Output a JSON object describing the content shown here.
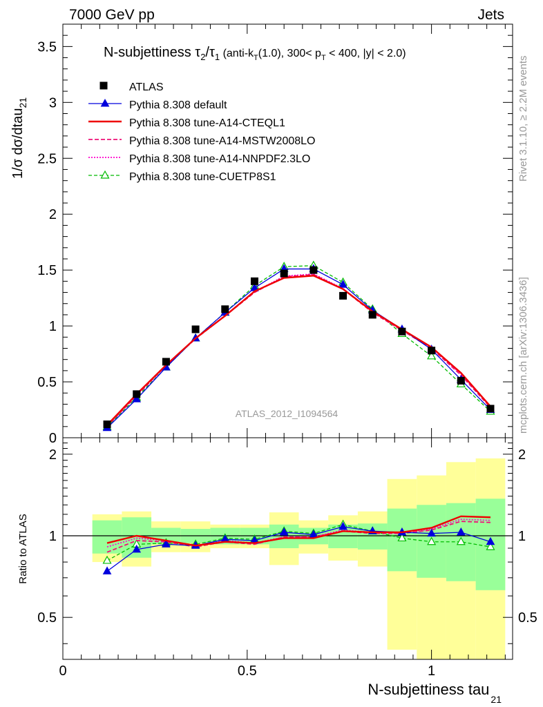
{
  "header": {
    "left": "7000 GeV pp",
    "right": "Jets"
  },
  "side_labels": {
    "rivet": "Rivet 3.1.10, ≥ 2.2M events",
    "mcplots": "mcplots.cern.ch [arXiv:1306.3436]"
  },
  "chart_data": {
    "type": "line",
    "title": "N-subjettiness τ₂/τ₁ (anti-k_T(1.0), 300< p_T < 400, |y| < 2.0)",
    "title_parts": {
      "main": "N-subjettiness τ",
      "sub2": "2",
      "slash": "/τ",
      "sub1": "1",
      "paren_a": " (anti-k",
      "sub_t": "T",
      "paren_b": "(1.0), 300< p",
      "sub_t2": "T",
      "paren_c": " < 400, |y| < 2.0)"
    },
    "analysis_tag": "ATLAS_2012_I1094564",
    "xlabel": "N-subjettiness tau",
    "xlabel_sub": "21",
    "ylabel": "1/σ dσ/dtau",
    "ylabel_sub": "21",
    "ratio_ylabel": "Ratio to ATLAS",
    "xlim": [
      0,
      1.22
    ],
    "ylim": [
      0,
      3.7
    ],
    "ratio_ylim": [
      0.35,
      2.3
    ],
    "main_yticks": [
      0,
      0.5,
      1,
      1.5,
      2,
      2.5,
      3,
      3.5
    ],
    "main_ytick_labels": [
      "0",
      "0.5",
      "1",
      "1.5",
      "2",
      "2.5",
      "3",
      "3.5"
    ],
    "ratio_yticks": [
      0.5,
      1,
      2
    ],
    "ratio_ytick_labels": [
      "0.5",
      "1",
      "2"
    ],
    "xticks": [
      0,
      0.5,
      1
    ],
    "xtick_labels": [
      "0",
      "0.5",
      "1"
    ],
    "bin_edges": [
      0.08,
      0.16,
      0.24,
      0.32,
      0.4,
      0.48,
      0.56,
      0.64,
      0.72,
      0.8,
      0.88,
      0.96,
      1.04,
      1.12,
      1.2
    ],
    "x": [
      0.12,
      0.2,
      0.28,
      0.36,
      0.44,
      0.52,
      0.6,
      0.68,
      0.76,
      0.84,
      0.92,
      1.0,
      1.08,
      1.16
    ],
    "data": {
      "name": "ATLAS",
      "values": [
        0.12,
        0.39,
        0.68,
        0.97,
        1.15,
        1.4,
        1.47,
        1.5,
        1.27,
        1.1,
        0.95,
        0.78,
        0.51,
        0.26
      ]
    },
    "ratio_band_inner_half": [
      0.14,
      0.17,
      0.07,
      0.06,
      0.07,
      0.07,
      0.1,
      0.07,
      0.1,
      0.11,
      0.26,
      0.3,
      0.32,
      0.37
    ],
    "ratio_band_outer_half": [
      0.2,
      0.23,
      0.13,
      0.13,
      0.1,
      0.1,
      0.22,
      0.14,
      0.19,
      0.23,
      0.62,
      0.67,
      0.87,
      0.93
    ],
    "series": [
      {
        "name": "Pythia 8.308 default",
        "color": "#0000dd",
        "dash": "",
        "width": 1.3,
        "marker": "triangle-filled",
        "values": [
          0.088,
          0.345,
          0.63,
          0.89,
          1.12,
          1.34,
          1.51,
          1.51,
          1.37,
          1.14,
          0.97,
          0.79,
          0.52,
          0.25
        ],
        "ratio": [
          0.74,
          0.89,
          0.93,
          0.92,
          0.97,
          0.96,
          1.03,
          1.01,
          1.08,
          1.04,
          1.03,
          1.02,
          1.03,
          0.95
        ]
      },
      {
        "name": "Pythia 8.308 tune-A14-CTEQL1",
        "color": "#ee0000",
        "dash": "",
        "width": 2.4,
        "marker": "",
        "values": [
          0.113,
          0.39,
          0.65,
          0.89,
          1.09,
          1.31,
          1.43,
          1.45,
          1.33,
          1.13,
          0.97,
          0.81,
          0.58,
          0.28
        ],
        "ratio": [
          0.94,
          1.0,
          0.96,
          0.92,
          0.95,
          0.94,
          0.98,
          0.98,
          1.04,
          1.03,
          1.03,
          1.07,
          1.18,
          1.17
        ]
      },
      {
        "name": "Pythia 8.308 tune-A14-MSTW2008LO",
        "color": "#ee1177",
        "dash": "6,3",
        "width": 1.8,
        "marker": "",
        "values": [
          0.104,
          0.375,
          0.645,
          0.885,
          1.09,
          1.3,
          1.44,
          1.46,
          1.33,
          1.12,
          0.96,
          0.8,
          0.56,
          0.27
        ],
        "ratio": [
          0.87,
          0.96,
          0.95,
          0.91,
          0.95,
          0.93,
          0.99,
          0.99,
          1.04,
          1.02,
          1.02,
          1.05,
          1.13,
          1.12
        ]
      },
      {
        "name": "Pythia 8.308 tune-A14-NNPDF2.3LO",
        "color": "#ff00cc",
        "dash": "2,2",
        "width": 1.8,
        "marker": "",
        "values": [
          0.108,
          0.38,
          0.648,
          0.888,
          1.095,
          1.305,
          1.445,
          1.465,
          1.335,
          1.125,
          0.965,
          0.805,
          0.57,
          0.275
        ],
        "ratio": [
          0.91,
          0.98,
          0.96,
          0.92,
          0.96,
          0.94,
          0.99,
          0.99,
          1.05,
          1.03,
          1.02,
          1.06,
          1.15,
          1.14
        ]
      },
      {
        "name": "Pythia 8.308 tune-CUETP8S1",
        "color": "#00bb00",
        "dash": "5,3",
        "width": 1.3,
        "marker": "triangle-open",
        "values": [
          0.098,
          0.36,
          0.63,
          0.89,
          1.12,
          1.36,
          1.53,
          1.54,
          1.39,
          1.15,
          0.93,
          0.73,
          0.48,
          0.235
        ],
        "ratio": [
          0.81,
          0.93,
          0.94,
          0.93,
          0.98,
          0.97,
          1.04,
          1.02,
          1.1,
          1.04,
          0.98,
          0.95,
          0.95,
          0.91
        ]
      }
    ],
    "grid": false,
    "legend_position": "top-left"
  }
}
